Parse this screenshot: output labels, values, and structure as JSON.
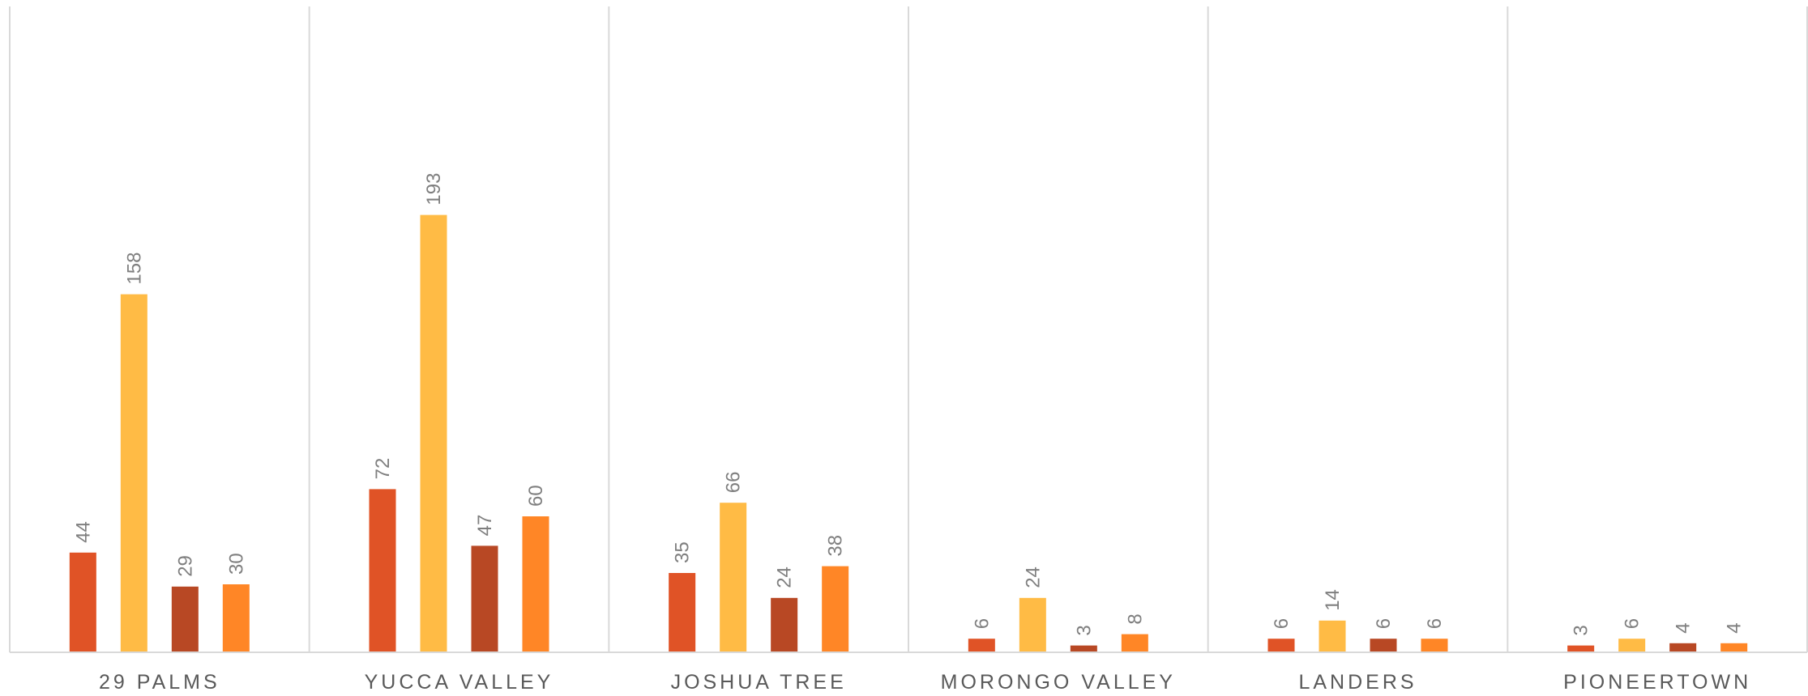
{
  "chart_data": {
    "type": "bar",
    "categories": [
      "29 PALMS",
      "YUCCA VALLEY",
      "JOSHUA TREE",
      "MORONGO VALLEY",
      "LANDERS",
      "PIONEERTOWN"
    ],
    "series": [
      {
        "values": [
          44,
          72,
          35,
          6,
          6,
          3
        ],
        "color": "#e05326"
      },
      {
        "values": [
          158,
          193,
          66,
          24,
          14,
          6
        ],
        "color": "#ffbb45"
      },
      {
        "values": [
          29,
          47,
          24,
          3,
          6,
          4
        ],
        "color": "#b84824"
      },
      {
        "values": [
          30,
          60,
          38,
          8,
          6,
          4
        ],
        "color": "#ff8626"
      }
    ],
    "ylim": [
      0,
      250
    ],
    "grid": "vertical category separators",
    "legend": "none",
    "data_labels": true
  }
}
